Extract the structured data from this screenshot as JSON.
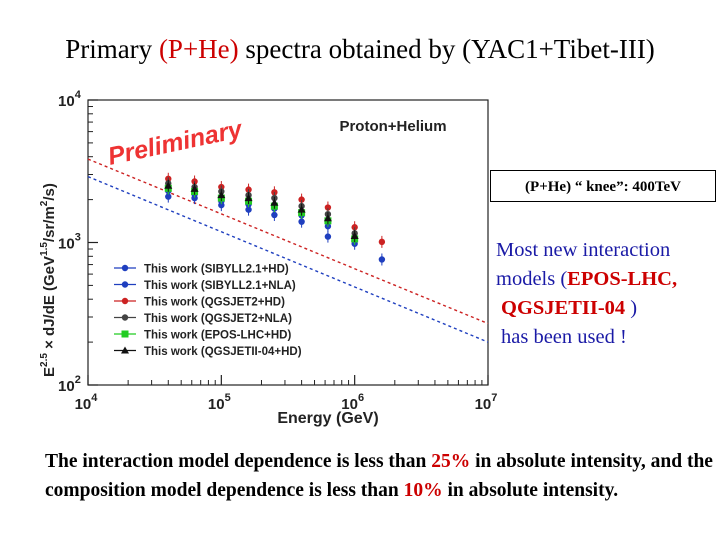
{
  "slide": {
    "title_pre": "Primary ",
    "title_hl": "(P+He)",
    "title_post": " spectra obtained by (YAC1+Tibet-III)",
    "knee_label": "(P+He) “ knee”: 400TeV",
    "models_note": {
      "line1": "Most new interaction",
      "line2_pre": "models (",
      "line2_red": "EPOS-LHC,",
      "line3_red": "QGSJETII-04",
      "line3_post": " )",
      "line4": "has been used !"
    },
    "conclusion": {
      "p1": "The interaction model dependence  is less than  ",
      "v1": "25%",
      "p2": " in absolute intensity,  and the composition model dependence is less than  ",
      "v2": "10%",
      "p3": " in absolute intensity."
    }
  },
  "chart_data": {
    "type": "scatter",
    "title": "Proton+Helium",
    "watermark": "Preliminary",
    "xlabel": "Energy (GeV)",
    "ylabel": "E^2.5 × dJ/dE (GeV^1.5/sr/m²/s)",
    "ylabel_parts": {
      "e": "E",
      "exp": "2.5",
      "rest": " × dJ/dE (GeV",
      "unit_exp": "1.5",
      "tail": "/sr/m",
      "sq": "2",
      "end": "/s)"
    },
    "x_scale": "log",
    "y_scale": "log",
    "xlim": [
      10000,
      10000000
    ],
    "ylim": [
      100,
      10000
    ],
    "x_ticks": [
      {
        "mant": "10",
        "exp": "4"
      },
      {
        "mant": "10",
        "exp": "5"
      },
      {
        "mant": "10",
        "exp": "6"
      },
      {
        "mant": "10",
        "exp": "7"
      }
    ],
    "y_ticks": [
      {
        "mant": "10",
        "exp": "2"
      },
      {
        "mant": "10",
        "exp": "3"
      },
      {
        "mant": "10",
        "exp": "4"
      }
    ],
    "legend_position": "bottom-left",
    "x": [
      40000,
      63000,
      100000,
      160000,
      250000,
      400000,
      630000,
      1000000,
      1600000
    ],
    "series": [
      {
        "name": "This work (SIBYLL2.1+HD)",
        "color": "#1f3fbf",
        "marker": "circle",
        "values": [
          2100,
          2050,
          1830,
          1700,
          1560,
          1400,
          1100,
          null,
          760
        ],
        "fit": {
          "x": [
            10000,
            10000000
          ],
          "y": [
            2900,
            200
          ]
        }
      },
      {
        "name": "This work (SIBYLL2.1+NLA)",
        "color": "#1f3fbf",
        "marker": "circle",
        "values": [
          2300,
          2180,
          1950,
          1850,
          1730,
          1550,
          1300,
          980,
          null
        ]
      },
      {
        "name": "This work (QGSJET2+HD)",
        "color": "#cc2222",
        "marker": "circle",
        "values": [
          2800,
          2680,
          2450,
          2350,
          2250,
          2000,
          1760,
          1280,
          1010
        ],
        "fit": {
          "x": [
            10000,
            10000000
          ],
          "y": [
            3850,
            270
          ]
        }
      },
      {
        "name": "This work (QGSJET2+NLA)",
        "color": "#444444",
        "marker": "circle",
        "values": [
          2600,
          2450,
          2280,
          2150,
          2050,
          1800,
          1580,
          1160,
          null
        ]
      },
      {
        "name": "This work (EPOS-LHC+HD)",
        "color": "#22cc22",
        "marker": "square",
        "values": [
          2400,
          2280,
          2050,
          1950,
          1800,
          1620,
          1420,
          1060,
          null
        ]
      },
      {
        "name": "This work (QGSJETII-04+HD)",
        "color": "#111111",
        "marker": "triangle",
        "values": [
          2500,
          2380,
          2150,
          2050,
          1900,
          1700,
          1480,
          1110,
          null
        ]
      }
    ]
  }
}
